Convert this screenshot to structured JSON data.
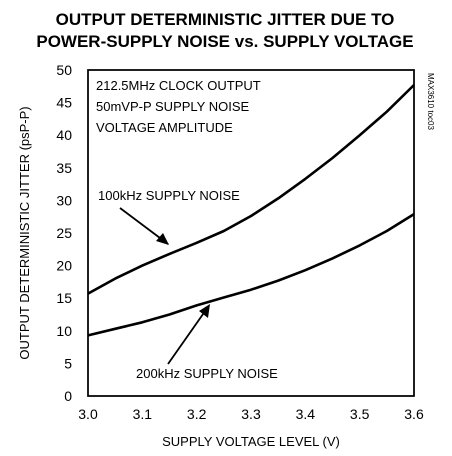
{
  "chart_data": {
    "type": "line",
    "title_line1": "OUTPUT DETERMINISTIC JITTER DUE TO",
    "title_line2": "POWER-SUPPLY NOISE vs. SUPPLY VOLTAGE",
    "xlabel": "SUPPLY VOLTAGE LEVEL (V)",
    "ylabel": "OUTPUT DETERMINISTIC JITTER (psP-P)",
    "xlim": [
      3.0,
      3.6
    ],
    "ylim": [
      0,
      50
    ],
    "xticks": [
      "3.0",
      "3.1",
      "3.2",
      "3.3",
      "3.4",
      "3.5",
      "3.6"
    ],
    "yticks": [
      "0",
      "5",
      "10",
      "15",
      "20",
      "25",
      "30",
      "35",
      "40",
      "45",
      "50"
    ],
    "grid": true,
    "conditions": [
      "212.5MHz CLOCK OUTPUT",
      "50mVP-P SUPPLY NOISE",
      "VOLTAGE AMPLITUDE"
    ],
    "figure_code": "MAX3610 toc03",
    "series": [
      {
        "name": "100kHz SUPPLY NOISE",
        "x": [
          3.0,
          3.05,
          3.1,
          3.15,
          3.2,
          3.25,
          3.3,
          3.35,
          3.4,
          3.45,
          3.5,
          3.55,
          3.6
        ],
        "y": [
          15.7,
          18.0,
          20.0,
          21.8,
          23.5,
          25.3,
          27.6,
          30.3,
          33.3,
          36.5,
          40.0,
          43.6,
          47.7
        ]
      },
      {
        "name": "200kHz SUPPLY NOISE",
        "x": [
          3.0,
          3.05,
          3.1,
          3.15,
          3.2,
          3.25,
          3.3,
          3.35,
          3.4,
          3.45,
          3.5,
          3.55,
          3.6
        ],
        "y": [
          9.3,
          10.3,
          11.3,
          12.5,
          13.9,
          15.1,
          16.3,
          17.7,
          19.3,
          21.1,
          23.1,
          25.3,
          27.9
        ]
      }
    ]
  }
}
